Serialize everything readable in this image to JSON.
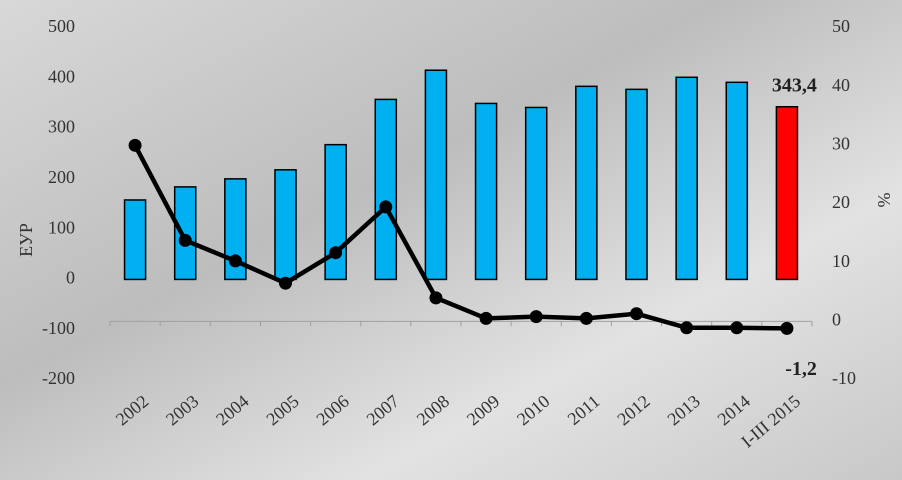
{
  "chart_data": {
    "type": "bar-line",
    "y_label": "ЕУР",
    "y2_label": "%",
    "categories": [
      "2002",
      "2003",
      "2004",
      "2005",
      "2006",
      "2007",
      "2008",
      "2009",
      "2010",
      "2011",
      "2012",
      "2013",
      "2014",
      "I-III 2015"
    ],
    "series": [
      {
        "type": "bar",
        "axis": "y",
        "colors": [
          "#00b0f0",
          "#00b0f0",
          "#00b0f0",
          "#00b0f0",
          "#00b0f0",
          "#00b0f0",
          "#00b0f0",
          "#00b0f0",
          "#00b0f0",
          "#00b0f0",
          "#00b0f0",
          "#00b0f0",
          "#00b0f0",
          "#ff0000"
        ],
        "values": [
          158,
          184,
          200,
          218,
          268,
          358,
          416,
          350,
          342,
          384,
          378,
          402,
          392,
          343.4
        ],
        "value_labels": [
          null,
          null,
          null,
          null,
          null,
          null,
          null,
          null,
          null,
          null,
          null,
          null,
          null,
          "343,4"
        ]
      },
      {
        "type": "line",
        "axis": "y2",
        "color": "#000000",
        "values": [
          30,
          13.8,
          10.3,
          6.5,
          11.7,
          19.5,
          4,
          0.5,
          0.8,
          0.5,
          1.3,
          -1.1,
          -1.1,
          -1.2
        ],
        "value_labels": [
          null,
          null,
          null,
          null,
          null,
          null,
          null,
          null,
          null,
          null,
          null,
          null,
          null,
          "-1,2"
        ]
      }
    ],
    "ylim": [
      -200,
      500
    ],
    "yticks": [
      -200,
      -100,
      0,
      100,
      200,
      300,
      400,
      500
    ],
    "y2lim": [
      -10,
      50
    ],
    "y2ticks": [
      -10,
      0,
      10,
      20,
      30,
      40,
      50
    ]
  }
}
